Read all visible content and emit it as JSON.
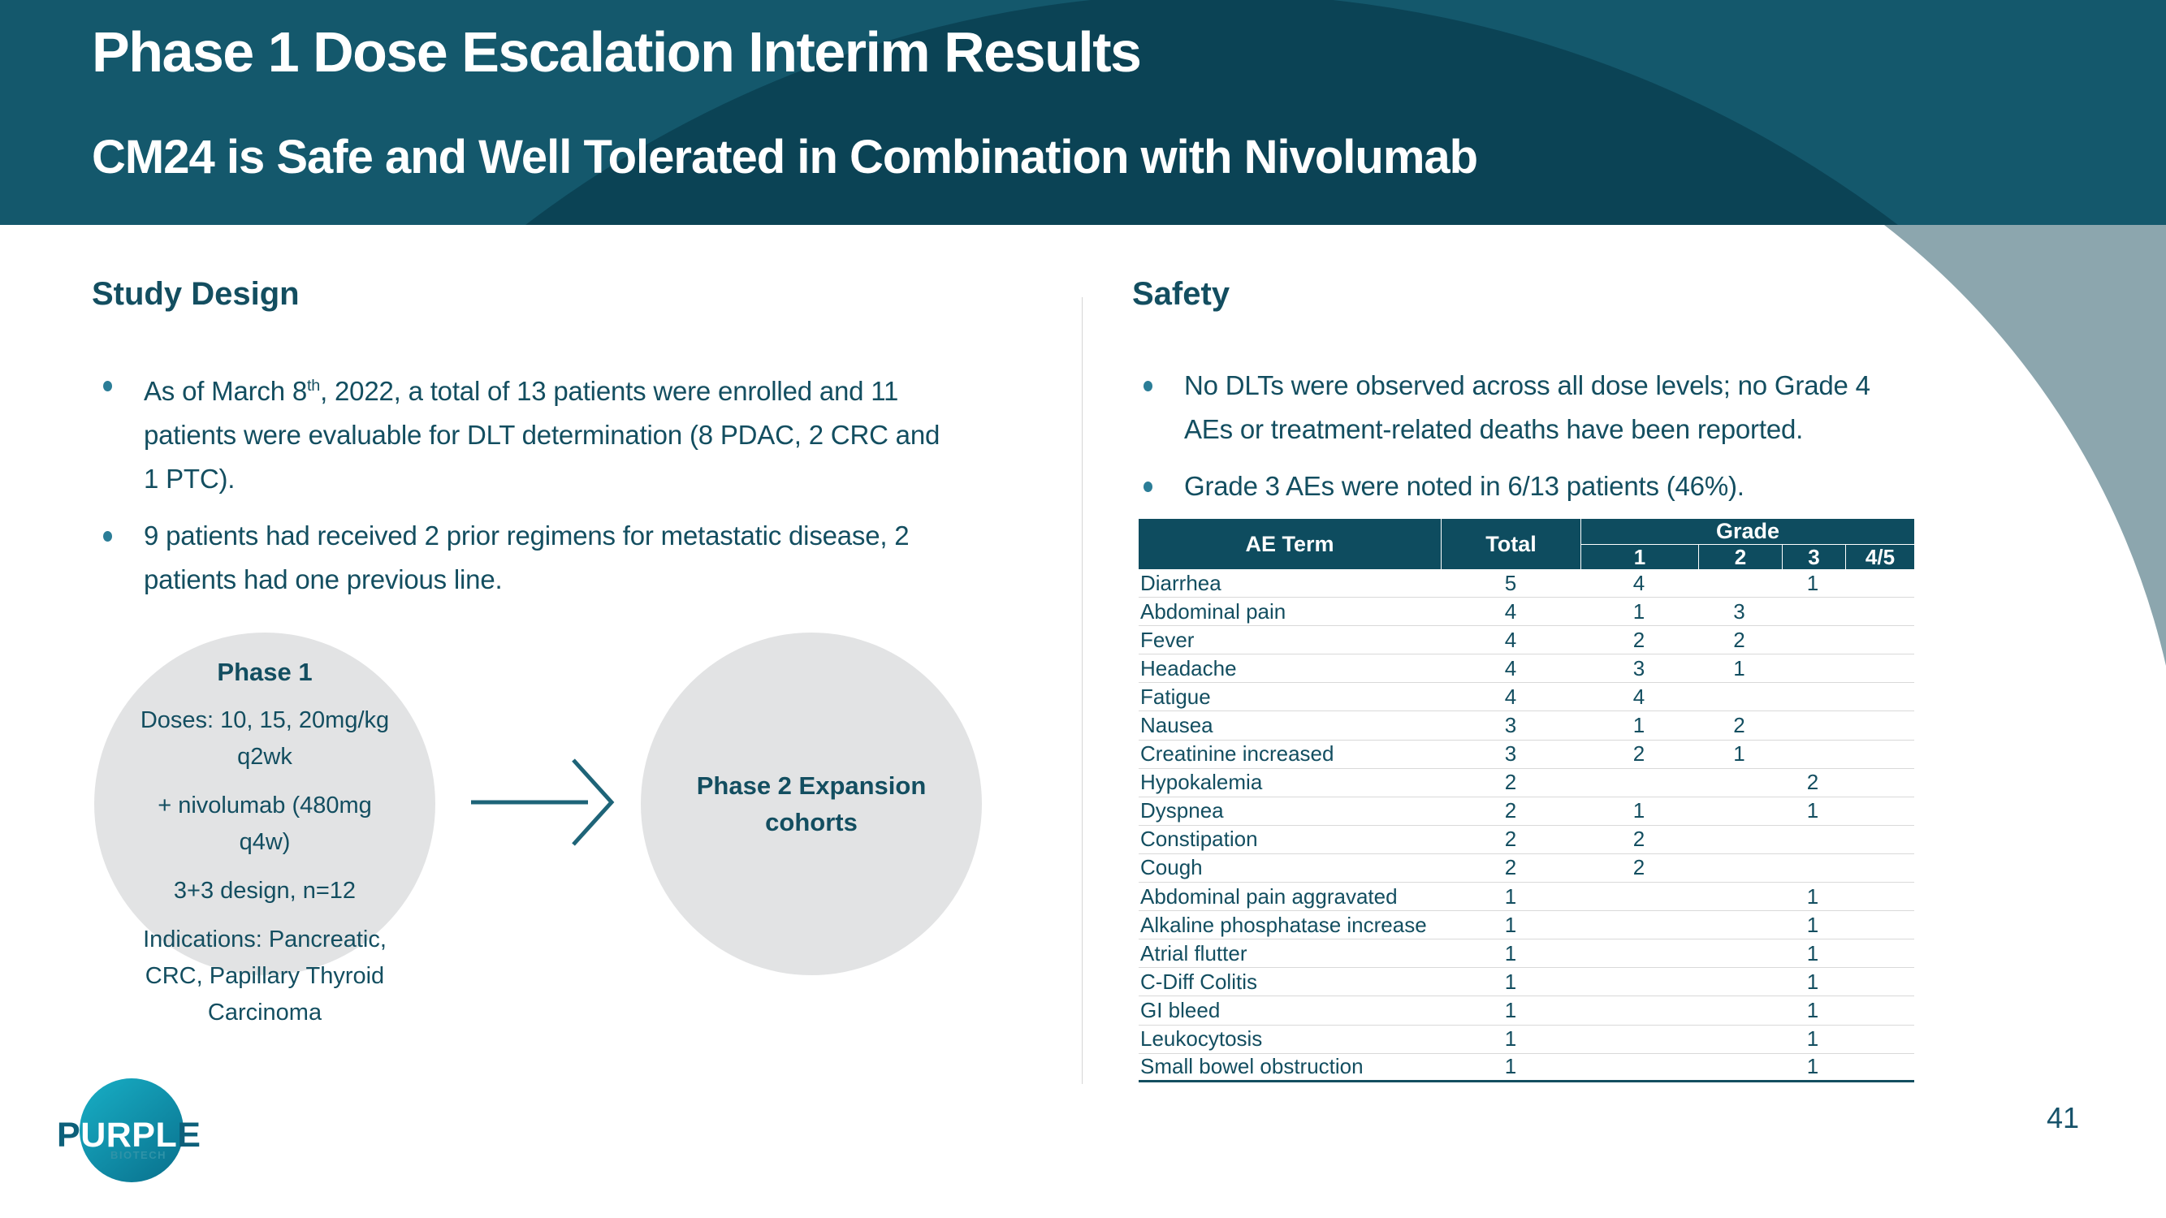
{
  "slide": {
    "title": "Phase 1 Dose Escalation Interim Results",
    "subtitle": "CM24 is Safe and Well Tolerated in Combination with Nivolumab",
    "page_number": "41"
  },
  "colors": {
    "header_light": "#14586C",
    "header_dark": "#0B4355",
    "gray_wedge": "#8CA6AE",
    "text_teal": "#134E60",
    "bullet_dot": "#2B7D97",
    "circle_fill": "#E2E3E4",
    "table_header_bg": "#0E4C5F",
    "row_divider": "#D9D9D9",
    "arrow": "#1E6478",
    "logo_gradient_start": "#18AFC6",
    "logo_gradient_end": "#0A7490",
    "logo_letter": "#0D607A",
    "logo_sub": "#2F93A8",
    "page_number": "#16526A"
  },
  "study_design": {
    "heading": "Study Design",
    "bullet1": {
      "pre": "As of March 8",
      "sup": "th",
      "post": ", 2022, a total of 13 patients were enrolled and 11\npatients were evaluable for DLT determination (8 PDAC, 2 CRC and\n1 PTC)."
    },
    "bullet2": "9 patients had received 2 prior regimens for metastatic disease, 2\npatients had one previous line.",
    "phase1_circle": {
      "title": "Phase 1",
      "doses": "Doses: 10, 15, 20mg/kg\nq2wk",
      "nivolumab": "+ nivolumab (480mg\nq4w)",
      "design": "3+3 design, n=12",
      "indications": "Indications: Pancreatic,\nCRC, Papillary Thyroid\nCarcinoma"
    },
    "phase2_circle": {
      "title": "Phase 2 Expansion\ncohorts"
    }
  },
  "safety": {
    "heading": "Safety",
    "bullet1": "No DLTs were observed across all dose levels; no Grade 4\nAEs or treatment-related deaths have been reported.",
    "bullet2": "Grade 3 AEs were noted in 6/13 patients (46%).",
    "table": {
      "col_ae": "AE Term",
      "col_total": "Total",
      "col_grade": "Grade",
      "grade_cols": [
        "1",
        "2",
        "3",
        "4/5"
      ],
      "rows": [
        {
          "term": "Diarrhea",
          "total": "5",
          "g1": "4",
          "g2": "",
          "g3": "1",
          "g45": ""
        },
        {
          "term": "Abdominal pain",
          "total": "4",
          "g1": "1",
          "g2": "3",
          "g3": "",
          "g45": ""
        },
        {
          "term": "Fever",
          "total": "4",
          "g1": "2",
          "g2": "2",
          "g3": "",
          "g45": ""
        },
        {
          "term": "Headache",
          "total": "4",
          "g1": "3",
          "g2": "1",
          "g3": "",
          "g45": ""
        },
        {
          "term": "Fatigue",
          "total": "4",
          "g1": "4",
          "g2": "",
          "g3": "",
          "g45": ""
        },
        {
          "term": "Nausea",
          "total": "3",
          "g1": "1",
          "g2": "2",
          "g3": "",
          "g45": ""
        },
        {
          "term": "Creatinine increased",
          "total": "3",
          "g1": "2",
          "g2": "1",
          "g3": "",
          "g45": ""
        },
        {
          "term": "Hypokalemia",
          "total": "2",
          "g1": "",
          "g2": "",
          "g3": "2",
          "g45": ""
        },
        {
          "term": "Dyspnea",
          "total": "2",
          "g1": "1",
          "g2": "",
          "g3": "1",
          "g45": ""
        },
        {
          "term": "Constipation",
          "total": "2",
          "g1": "2",
          "g2": "",
          "g3": "",
          "g45": ""
        },
        {
          "term": "Cough",
          "total": "2",
          "g1": "2",
          "g2": "",
          "g3": "",
          "g45": ""
        },
        {
          "term": "Abdominal pain aggravated",
          "total": "1",
          "g1": "",
          "g2": "",
          "g3": "1",
          "g45": ""
        },
        {
          "term": "Alkaline phosphatase increase",
          "total": "1",
          "g1": "",
          "g2": "",
          "g3": "1",
          "g45": ""
        },
        {
          "term": "Atrial flutter",
          "total": "1",
          "g1": "",
          "g2": "",
          "g3": "1",
          "g45": ""
        },
        {
          "term": "C-Diff Colitis",
          "total": "1",
          "g1": "",
          "g2": "",
          "g3": "1",
          "g45": ""
        },
        {
          "term": "GI bleed",
          "total": "1",
          "g1": "",
          "g2": "",
          "g3": "1",
          "g45": ""
        },
        {
          "term": "Leukocytosis",
          "total": "1",
          "g1": "",
          "g2": "",
          "g3": "1",
          "g45": ""
        },
        {
          "term": "Small bowel obstruction",
          "total": "1",
          "g1": "",
          "g2": "",
          "g3": "1",
          "g45": ""
        }
      ]
    }
  },
  "logo": {
    "p": "P",
    "mid": "URPL",
    "e": "E",
    "sub": "BIOTECH"
  }
}
